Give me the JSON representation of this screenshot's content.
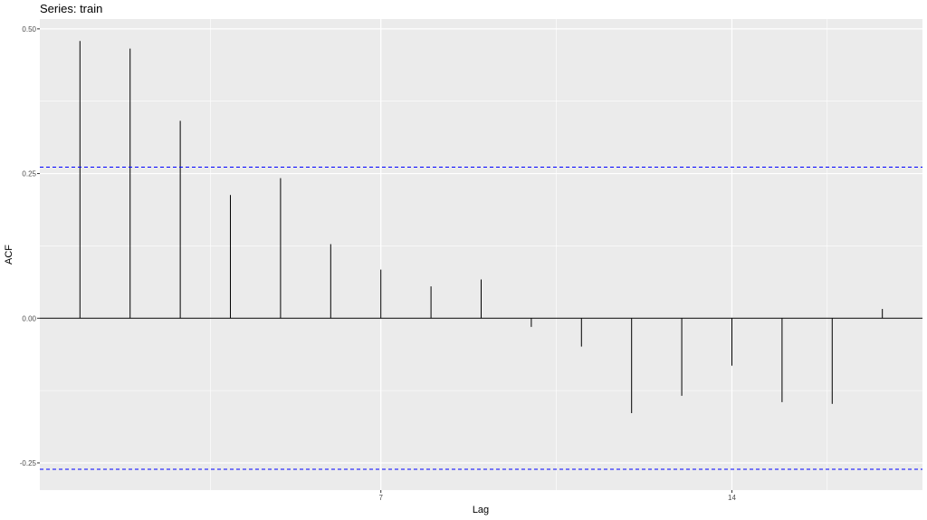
{
  "chart_data": {
    "type": "bar",
    "title": "Series: train",
    "xlabel": "Lag",
    "ylabel": "ACF",
    "x": [
      1,
      2,
      3,
      4,
      5,
      6,
      7,
      8,
      9,
      10,
      11,
      12,
      13,
      14,
      15,
      16,
      17
    ],
    "values": [
      0.479,
      0.466,
      0.341,
      0.213,
      0.242,
      0.128,
      0.084,
      0.055,
      0.067,
      -0.015,
      -0.049,
      -0.164,
      -0.134,
      -0.082,
      -0.145,
      -0.148,
      0.016
    ],
    "xticks": [
      7,
      14
    ],
    "xtick_labels": [
      "7",
      "14"
    ],
    "yticks": [
      -0.25,
      0.0,
      0.25,
      0.5
    ],
    "ytick_labels": [
      "-0.25",
      "0.00",
      "0.25",
      "0.50"
    ],
    "xlim": [
      0.2,
      17.8
    ],
    "ylim": [
      -0.297,
      0.517
    ],
    "ci_bounds": [
      0.261,
      -0.261
    ],
    "grid": true,
    "colors": {
      "panel": "#ebebeb",
      "grid": "#ffffff",
      "bar": "#000000",
      "ci_line": "#0000ff",
      "zero_line": "#000000"
    }
  }
}
